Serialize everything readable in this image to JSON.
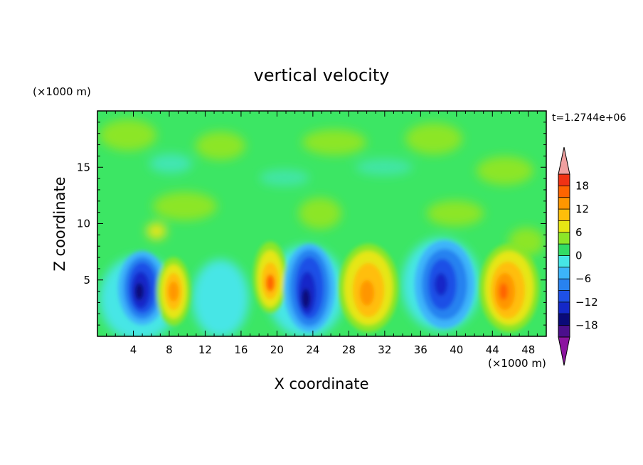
{
  "chart_data": {
    "type": "heatmap",
    "title": "vertical velocity",
    "xlabel": "X coordinate",
    "ylabel": "Z coordinate",
    "x_unit": "(×1000 m)",
    "y_unit": "(×1000 m)",
    "time_label": "t=1.2744e+06",
    "xlim": [
      0,
      50
    ],
    "ylim": [
      0,
      20
    ],
    "x_ticks": [
      4,
      8,
      12,
      16,
      20,
      24,
      28,
      32,
      36,
      40,
      44,
      48
    ],
    "y_ticks": [
      5,
      10,
      15
    ],
    "colorbar": {
      "levels": [
        -21,
        -18,
        -15,
        -12,
        -9,
        -6,
        -3,
        0,
        3,
        6,
        9,
        12,
        15,
        18,
        21
      ],
      "tick_labels": [
        -18,
        -12,
        -6,
        0,
        6,
        12,
        18
      ],
      "colors": [
        "#4b0f8c",
        "#0a0a78",
        "#1428c8",
        "#1e50e6",
        "#2882f0",
        "#3cb4fa",
        "#46e6e6",
        "#32dc64",
        "#8ce628",
        "#e6e614",
        "#ffbe0a",
        "#ff9600",
        "#ff6400",
        "#f03214"
      ],
      "under_color": "#8c14a0",
      "over_color": "#f0a0a0",
      "extend": "both"
    },
    "features": [
      {
        "kind": "downdraft",
        "x": 5.5,
        "z": 4.2,
        "w_min": -15
      },
      {
        "kind": "updraft",
        "x": 8.8,
        "z": 4.0,
        "w_max": 14
      },
      {
        "kind": "updraft",
        "x": 19.3,
        "z": 4.8,
        "w_max": 14
      },
      {
        "kind": "downdraft",
        "x": 23.5,
        "z": 3.8,
        "w_min": -17
      },
      {
        "kind": "updraft",
        "x": 30.0,
        "z": 4.0,
        "w_max": 13
      },
      {
        "kind": "downdraft",
        "x": 38.0,
        "z": 4.8,
        "w_min": -12
      },
      {
        "kind": "updraft",
        "x": 45.5,
        "z": 4.2,
        "w_max": 15
      }
    ]
  }
}
